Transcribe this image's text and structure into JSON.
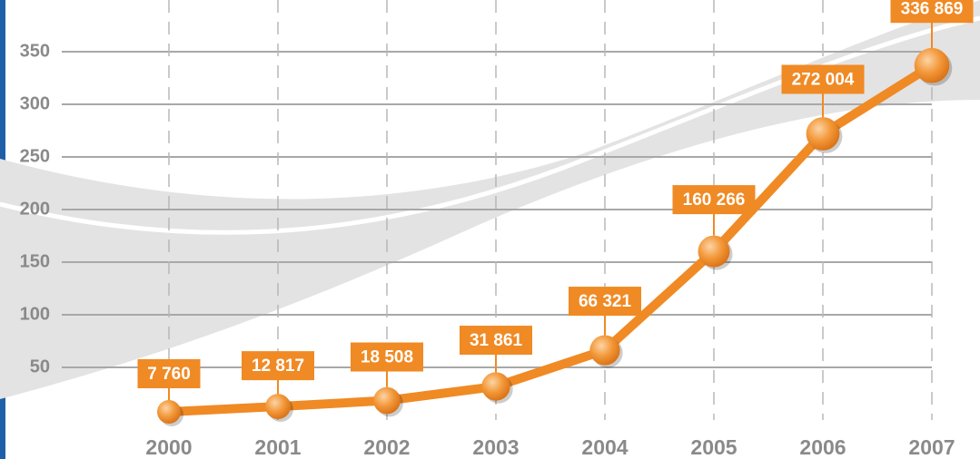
{
  "chart_data": {
    "type": "line",
    "categories": [
      "2000",
      "2001",
      "2002",
      "2003",
      "2004",
      "2005",
      "2006",
      "2007"
    ],
    "series": [
      {
        "color": "#f08a24",
        "values": [
          7.76,
          12.817,
          18.508,
          31.861,
          66.321,
          160.266,
          272.004,
          336.869
        ],
        "value_labels": [
          "7 760",
          "12 817",
          "18 508",
          "31 861",
          "66 321",
          "160 266",
          "272 004",
          "336 869"
        ]
      }
    ],
    "ylim": [
      0,
      400
    ],
    "yticks": [
      50,
      100,
      150,
      200,
      250,
      300,
      350
    ],
    "grid": true
  }
}
